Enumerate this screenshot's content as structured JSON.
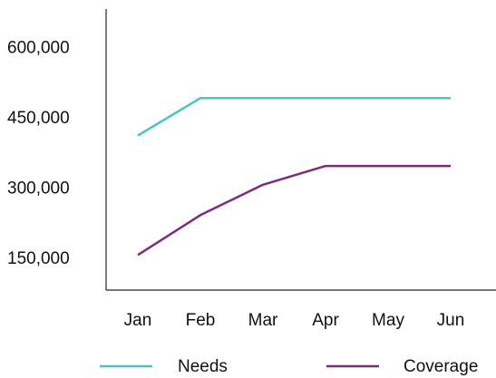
{
  "chart_data": {
    "type": "line",
    "categories": [
      "Jan",
      "Feb",
      "Mar",
      "Apr",
      "May",
      "Jun"
    ],
    "y_tick_labels": [
      "600,000",
      "450,000",
      "300,000",
      "150,000"
    ],
    "y_ticks": [
      600000,
      450000,
      300000,
      150000
    ],
    "ylim": [
      80000,
      680000
    ],
    "grid": false,
    "legend_position": "bottom",
    "series": [
      {
        "name": "Needs",
        "color": "#4dc4c4",
        "values": [
          410000,
          490000,
          490000,
          490000,
          490000,
          490000
        ]
      },
      {
        "name": "Coverage",
        "color": "#7b2d7b",
        "values": [
          155000,
          240000,
          305000,
          345000,
          345000,
          345000
        ]
      }
    ]
  }
}
